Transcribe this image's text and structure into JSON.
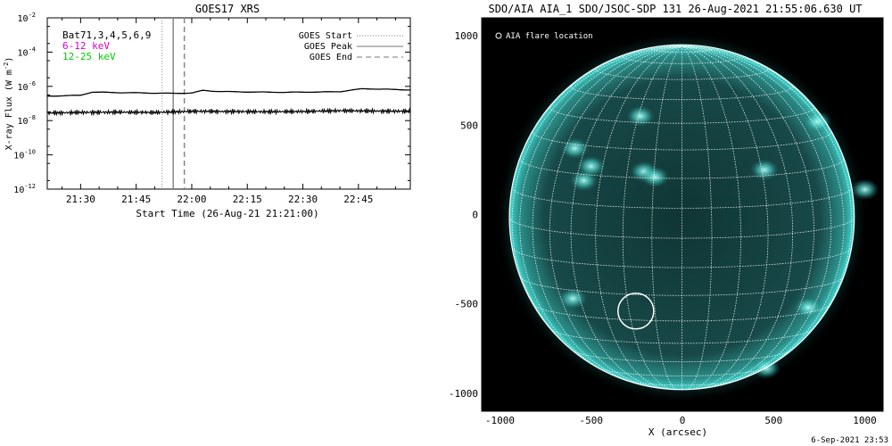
{
  "footer_timestamp": "6-Sep-2021 23:53",
  "colors": {
    "flux_low": "#000000",
    "flux_high": "#000000",
    "label_6_12": "#d400d4",
    "label_12_25": "#00cc00",
    "sun_face": "#0f3534",
    "sun_limb": "#40d6cf",
    "grid": "#ffffff"
  },
  "chart_data": [
    {
      "type": "line",
      "title": "GOES17 XRS",
      "xlabel": "Start Time (26-Aug-21 21:21:00)",
      "ylabel": "X-ray Flux (W m",
      "ylabel_sup": "-2",
      "ylabel_end": ")",
      "ylog": true,
      "ylim": [
        1e-12,
        0.01
      ],
      "xlim_minutes": [
        21,
        119
      ],
      "xtick_labels": [
        {
          "label": "21:30",
          "minutes": 30
        },
        {
          "label": "21:45",
          "minutes": 45
        },
        {
          "label": "22:00",
          "minutes": 60
        },
        {
          "label": "22:15",
          "minutes": 75
        },
        {
          "label": "22:30",
          "minutes": 90
        },
        {
          "label": "22:45",
          "minutes": 105
        }
      ],
      "ytick_labels": [
        {
          "base": "10",
          "exp": "-12",
          "value": 1e-12
        },
        {
          "base": "10",
          "exp": "-10",
          "value": 1e-10
        },
        {
          "base": "10",
          "exp": "-8",
          "value": 1e-08
        },
        {
          "base": "10",
          "exp": "-6",
          "value": 1e-06
        },
        {
          "base": "10",
          "exp": "-4",
          "value": 0.0001
        },
        {
          "base": "10",
          "exp": "-2",
          "value": 0.01
        }
      ],
      "labels_left": [
        "Bat71,3,4,5,6,9",
        "6-12 keV",
        "12-25 keV"
      ],
      "legend": [
        {
          "label": "GOES Start",
          "style": "dotted"
        },
        {
          "label": "GOES Peak",
          "style": "solid"
        },
        {
          "label": "GOES End",
          "style": "dashed"
        }
      ],
      "markers_minutes": {
        "start": 52,
        "peak": 55,
        "end": 58
      },
      "series": [
        {
          "x_minutes": [
            21,
            25,
            30,
            33,
            36,
            40,
            45,
            50,
            55,
            60,
            63,
            66,
            70,
            75,
            80,
            85,
            90,
            95,
            100,
            103,
            106,
            110,
            115,
            119
          ],
          "y": [
            2.7e-07,
            2.8e-07,
            3e-07,
            4.6e-07,
            4.5e-07,
            4.3e-07,
            4.2e-07,
            4e-07,
            3.9e-07,
            4.1e-07,
            5.8e-07,
            5.2e-07,
            4.9e-07,
            4.7e-07,
            4.6e-07,
            4.5e-07,
            4.6e-07,
            4.7e-07,
            4.9e-07,
            6e-07,
            7.2e-07,
            7e-07,
            6.5e-07,
            6.2e-07
          ]
        },
        {
          "x_minutes": [
            21,
            30,
            40,
            50,
            55,
            60,
            70,
            80,
            90,
            100,
            110,
            119
          ],
          "y": [
            2.8e-08,
            3e-08,
            3.1e-08,
            3e-08,
            3.2e-08,
            3.5e-08,
            3.4e-08,
            3.3e-08,
            3.4e-08,
            3.8e-08,
            3.6e-08,
            3.5e-08
          ]
        }
      ]
    },
    {
      "type": "scatter",
      "title": "SDO/AIA AIA_1 SDO/JSOC-SDP 131 26-Aug-2021 21:55:06.630 UT",
      "xlabel": "X (arcsec)",
      "ylabel": "",
      "xlim": [
        -1100,
        1100
      ],
      "ylim": [
        -1100,
        1100
      ],
      "xticks": [
        -1000,
        -500,
        0,
        500,
        1000
      ],
      "yticks": [
        1000,
        500,
        0,
        -500,
        -1000
      ],
      "legend_label": "AIA flare location",
      "flare_location": {
        "x": -255,
        "y": -540,
        "radius": 98
      },
      "bright_regions": [
        {
          "x": -210,
          "y": 240
        },
        {
          "x": -150,
          "y": 210
        },
        {
          "x": -590,
          "y": 370
        },
        {
          "x": -540,
          "y": 190
        },
        {
          "x": -500,
          "y": 270
        },
        {
          "x": -230,
          "y": 550
        },
        {
          "x": 450,
          "y": 250
        },
        {
          "x": 740,
          "y": 520
        },
        {
          "x": 690,
          "y": -520
        },
        {
          "x": 1000,
          "y": 140
        },
        {
          "x": 460,
          "y": -860
        },
        {
          "x": -600,
          "y": -470
        }
      ]
    }
  ]
}
